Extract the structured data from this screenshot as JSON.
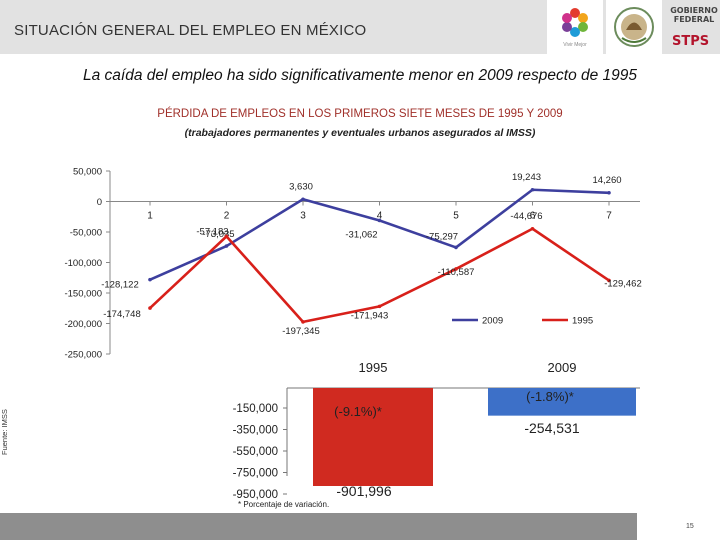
{
  "header": {
    "title": "SITUACIÓN GENERAL DEL EMPLEO EN MÉXICO",
    "logo_vm_label": "Vivir Mejor",
    "gobierno": "GOBIERNO",
    "federal": "FEDERAL",
    "stps": "STPS"
  },
  "subtitle": "La caída del empleo ha sido significativamente menor en 2009 respecto de 1995",
  "source": "Fuente: IMSS",
  "footnote": "* Porcentaje de variación.",
  "page_number": "15",
  "colors": {
    "series_2009": "#3d3f9e",
    "series_1995": "#d8201a",
    "bar_1995": "#d02a20",
    "bar_2009": "#3d70c8"
  },
  "chart_data": [
    {
      "type": "line",
      "title": "PÉRDIDA DE EMPLEOS EN LOS PRIMEROS SIETE MESES DE 1995 Y 2009",
      "subtitle": "(trabajadores permanentes y eventuales urbanos asegurados al IMSS)",
      "x": [
        1,
        2,
        3,
        4,
        5,
        6,
        7
      ],
      "x_tick_labels": [
        "1",
        "2",
        "3",
        "4",
        "5",
        "6",
        "7"
      ],
      "y_tick_labels": [
        "50,000",
        "0",
        "-50,000",
        "-100,000",
        "-150,000",
        "-200,000",
        "-250,000"
      ],
      "ylim": [
        -250000,
        50000
      ],
      "grid": false,
      "legend": "bottom-right",
      "series": [
        {
          "name": "2009",
          "values": [
            -128122,
            -73035,
            3630,
            -31062,
            -75297,
            19243,
            14260
          ],
          "labels": [
            "-128,122",
            "-73,035",
            "3,630",
            "-31,062",
            "-75,297",
            "19,243",
            "14,260"
          ]
        },
        {
          "name": "1995",
          "values": [
            -174748,
            -57183,
            -197345,
            -171943,
            -110587,
            -44676,
            -129462
          ],
          "labels": [
            "-174,748",
            "-57,183",
            "-197,345",
            "-171,943",
            "-110,587",
            "-44,676",
            "-129,462"
          ]
        }
      ]
    },
    {
      "type": "bar",
      "categories": [
        "1995",
        "2009"
      ],
      "values": [
        -901996,
        -254531
      ],
      "value_labels": [
        "-901,996",
        "-254,531"
      ],
      "pct_labels": [
        "(-9.1%)*",
        "(-1.8%)*"
      ],
      "y_tick_labels": [
        "-150,000",
        "-350,000",
        "-550,000",
        "-750,000",
        "-950,000"
      ]
    }
  ]
}
